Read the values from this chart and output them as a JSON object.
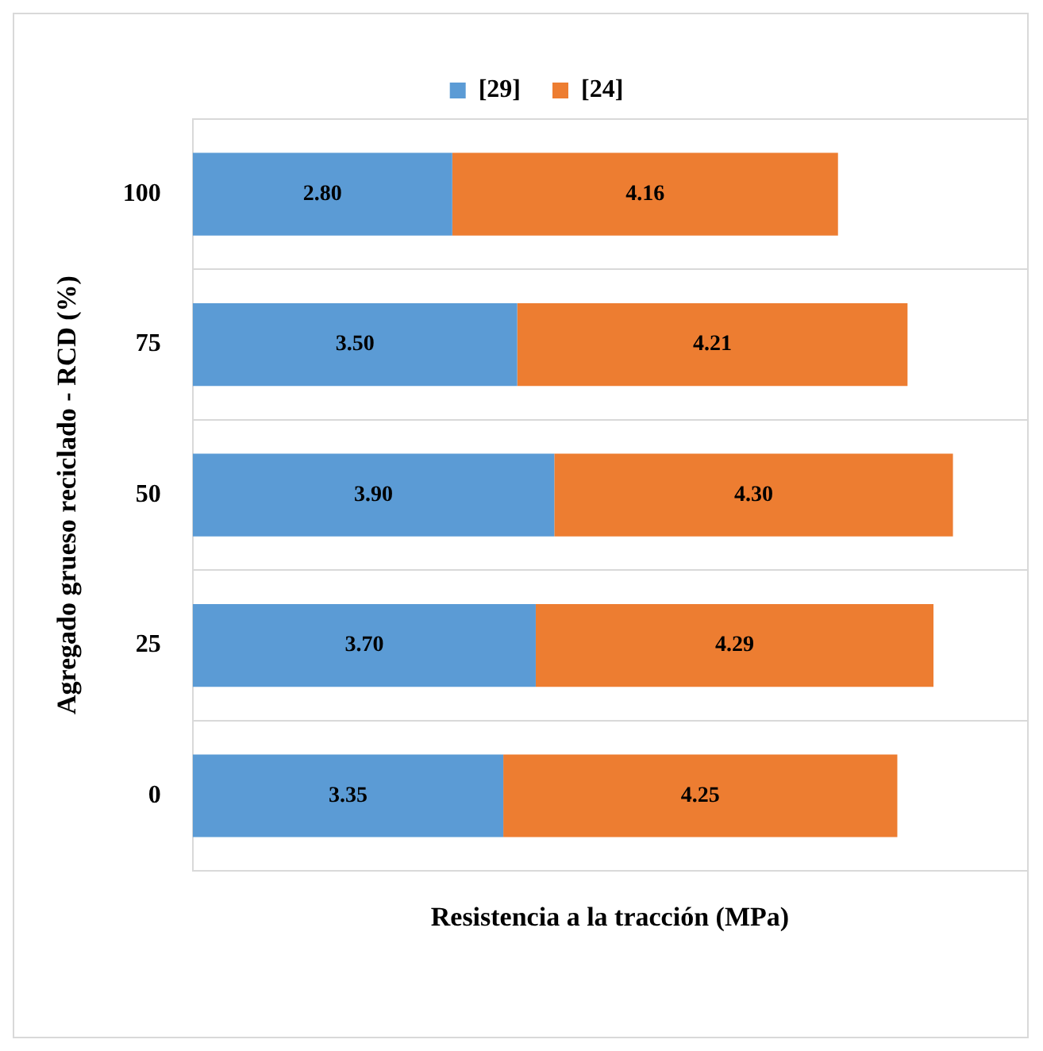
{
  "chart_data": {
    "type": "bar",
    "orientation": "horizontal",
    "stacked": true,
    "ylabel": "Agregado grueso reciclado - RCD (%)",
    "xlabel": "Resistencia a la tracción (MPa)",
    "categories": [
      "100",
      "75",
      "50",
      "25",
      "0"
    ],
    "series": [
      {
        "name": "[29]",
        "color": "#5b9bd5",
        "values": [
          2.8,
          3.5,
          3.9,
          3.7,
          3.35
        ],
        "value_labels": [
          "2.80",
          "3.50",
          "3.90",
          "3.70",
          "3.35"
        ]
      },
      {
        "name": "[24]",
        "color": "#ed7d31",
        "values": [
          4.16,
          4.21,
          4.3,
          4.29,
          4.25
        ],
        "value_labels": [
          "4.16",
          "4.21",
          "4.30",
          "4.29",
          "4.25"
        ]
      }
    ],
    "legend": "top",
    "grid": "y",
    "tick_labels": "y"
  }
}
